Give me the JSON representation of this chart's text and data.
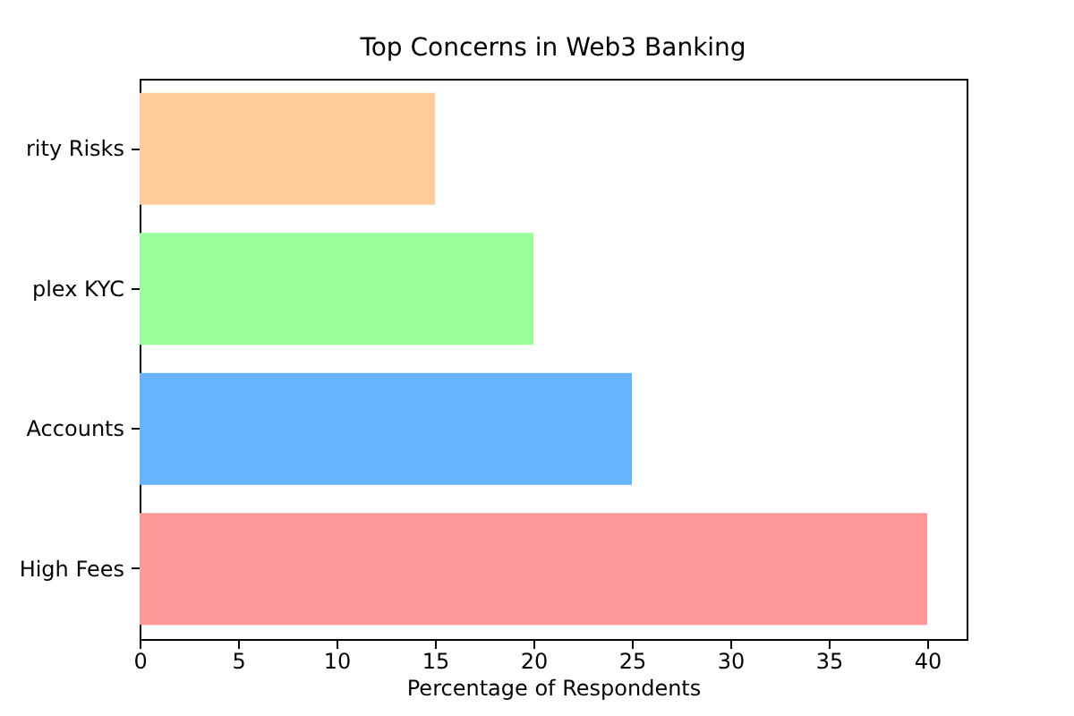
{
  "chart_data": {
    "type": "bar",
    "orientation": "horizontal",
    "title": "Top Concerns in Web3 Banking",
    "xlabel": "Percentage of Respondents",
    "categories": [
      "rity Risks",
      "plex KYC",
      "Accounts",
      "High Fees"
    ],
    "values": [
      15,
      20,
      25,
      40
    ],
    "colors": [
      "#ffcc99",
      "#99ff99",
      "#66b3ff",
      "#ff9999"
    ],
    "xlim": [
      0,
      42
    ],
    "xticks": [
      0,
      5,
      10,
      15,
      20,
      25,
      30,
      35,
      40
    ]
  }
}
